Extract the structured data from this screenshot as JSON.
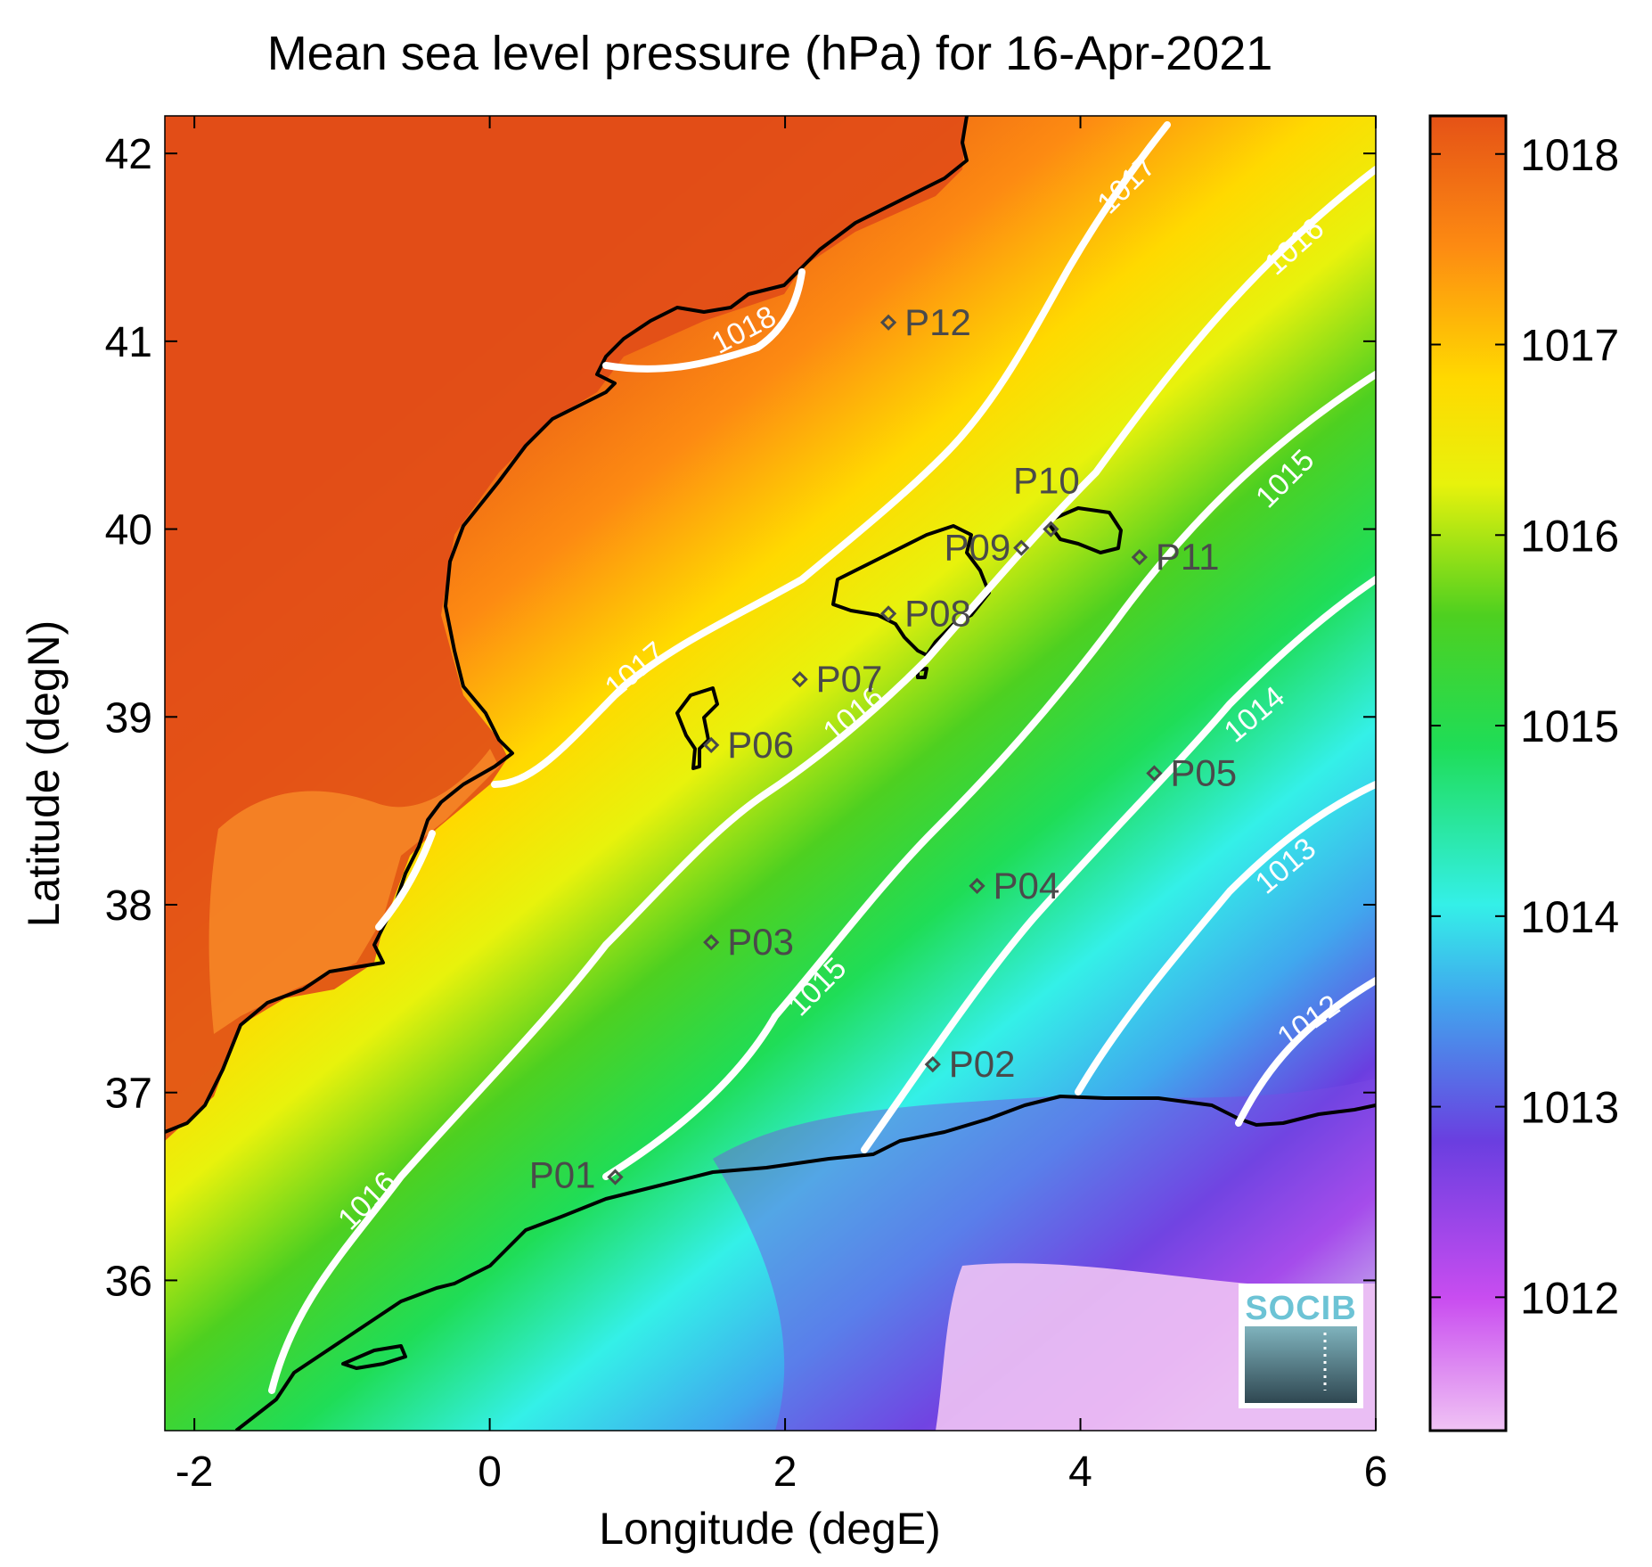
{
  "map": {
    "title": "Mean sea level pressure (hPa) for 16-Apr-2021",
    "xlabel": "Longitude (degE)",
    "ylabel": "Latitude (degN)",
    "lon_range": [
      -2.2,
      6.0
    ],
    "lat_range": [
      35.2,
      42.2
    ],
    "lon_ticks": [
      -2,
      0,
      2,
      4,
      6
    ],
    "lat_ticks": [
      36,
      37,
      38,
      39,
      40,
      41,
      42
    ],
    "colorbar": {
      "min": 1011.3,
      "max": 1018.2,
      "ticks": [
        1012,
        1013,
        1014,
        1015,
        1016,
        1017,
        1018
      ],
      "colors": [
        "#f0c3f4",
        "#c94df0",
        "#6a3ee0",
        "#40a8ee",
        "#34f0e8",
        "#1fdd57",
        "#4ed020",
        "#e8f20c",
        "#ffd900",
        "#fd8b12",
        "#e55216"
      ]
    },
    "stations": [
      {
        "id": "P01",
        "lon": 0.85,
        "lat": 36.55
      },
      {
        "id": "P02",
        "lon": 3.0,
        "lat": 37.15
      },
      {
        "id": "P03",
        "lon": 1.5,
        "lat": 37.8
      },
      {
        "id": "P04",
        "lon": 3.3,
        "lat": 38.1
      },
      {
        "id": "P05",
        "lon": 4.5,
        "lat": 38.7
      },
      {
        "id": "P06",
        "lon": 1.5,
        "lat": 38.85
      },
      {
        "id": "P07",
        "lon": 2.1,
        "lat": 39.2
      },
      {
        "id": "P08",
        "lon": 2.7,
        "lat": 39.55
      },
      {
        "id": "P09",
        "lon": 3.6,
        "lat": 39.9
      },
      {
        "id": "P10",
        "lon": 3.8,
        "lat": 40.0
      },
      {
        "id": "P11",
        "lon": 4.4,
        "lat": 39.85
      },
      {
        "id": "P12",
        "lon": 2.7,
        "lat": 41.1
      }
    ],
    "contour_labels": [
      "1018",
      "1017",
      "1017",
      "1016",
      "1016",
      "1016",
      "1015",
      "1015",
      "1014",
      "1013",
      "1012"
    ],
    "logo": "SOCIB"
  }
}
